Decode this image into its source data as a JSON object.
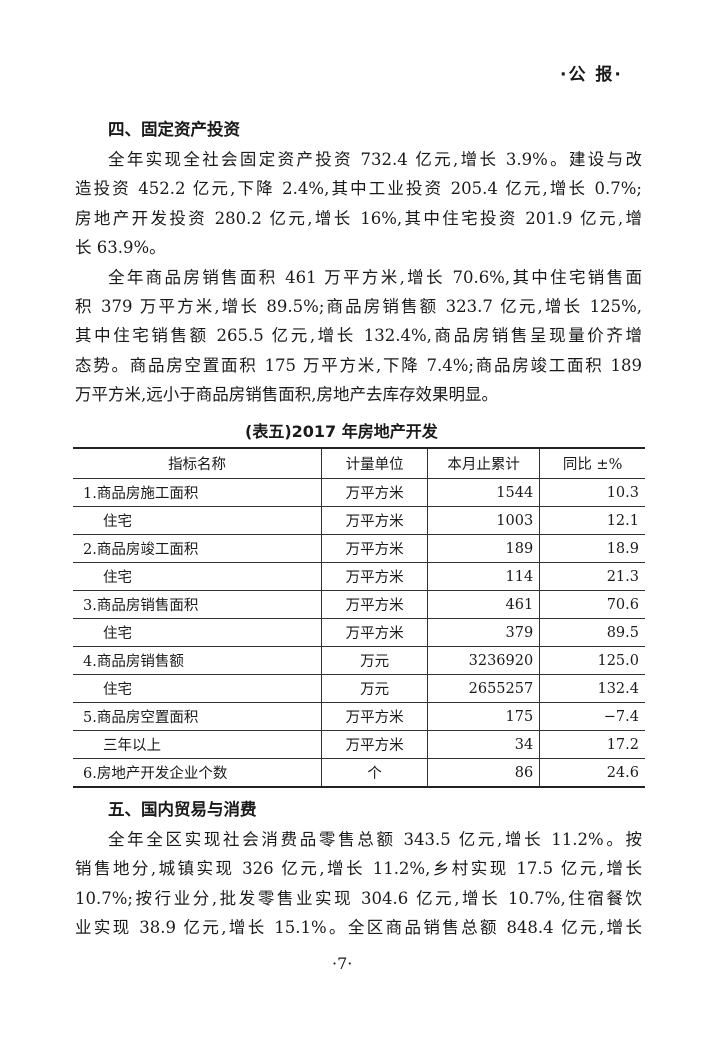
{
  "header": {
    "running_head": "·公 报·"
  },
  "sections": [
    {
      "heading": "四、固定资产投资",
      "paragraphs": [
        [
          "全年实现全社会固定资产投资 732.4 亿元,增长 3.9%。建设与改",
          "造投资 452.2 亿元,下降 2.4%,其中工业投资 205.4 亿元,增长 0.7%;",
          "房地产开发投资 280.2 亿元,增长 16%,其中住宅投资 201.9 亿元,增",
          "长 63.9%。"
        ],
        [
          "全年商品房销售面积 461 万平方米,增长 70.6%,其中住宅销售面",
          "积 379 万平方米,增长 89.5%;商品房销售额 323.7 亿元,增长 125%,",
          "其中住宅销售额 265.5 亿元,增长 132.4%,商品房销售呈现量价齐增",
          "态势。商品房空置面积 175 万平方米,下降 7.4%;商品房竣工面积 189",
          "万平方米,远小于商品房销售面积,房地产去库存效果明显。"
        ]
      ]
    },
    {
      "heading": "五、国内贸易与消费",
      "paragraphs": [
        [
          "全年全区实现社会消费品零售总额 343.5 亿元,增长 11.2%。按",
          "销售地分,城镇实现 326 亿元,增长 11.2%,乡村实现 17.5 亿元,增长",
          "10.7%;按行业分,批发零售业实现 304.6 亿元,增长 10.7%,住宿餐饮",
          "业实现 38.9 亿元,增长 15.1%。全区商品销售总额 848.4 亿元,增长"
        ]
      ]
    }
  ],
  "table": {
    "title": "(表五)2017 年房地产开发",
    "columns": [
      "指标名称",
      "计量单位",
      "本月止累计",
      "同比 ±%"
    ],
    "rows": [
      [
        "1.商品房施工面积",
        "万平方米",
        "1544",
        "10.3"
      ],
      [
        "住宅",
        "万平方米",
        "1003",
        "12.1"
      ],
      [
        "2.商品房竣工面积",
        "万平方米",
        "189",
        "18.9"
      ],
      [
        "住宅",
        "万平方米",
        "114",
        "21.3"
      ],
      [
        "3.商品房销售面积",
        "万平方米",
        "461",
        "70.6"
      ],
      [
        "住宅",
        "万平方米",
        "379",
        "89.5"
      ],
      [
        "4.商品房销售额",
        "万元",
        "3236920",
        "125.0"
      ],
      [
        "住宅",
        "万元",
        "2655257",
        "132.4"
      ],
      [
        "5.商品房空置面积",
        "万平方米",
        "175",
        "−7.4"
      ],
      [
        "三年以上",
        "万平方米",
        "34",
        "17.2"
      ],
      [
        "6.房地产开发企业个数",
        "个",
        "86",
        "24.6"
      ]
    ]
  },
  "footer": {
    "page_number": "·7·"
  }
}
